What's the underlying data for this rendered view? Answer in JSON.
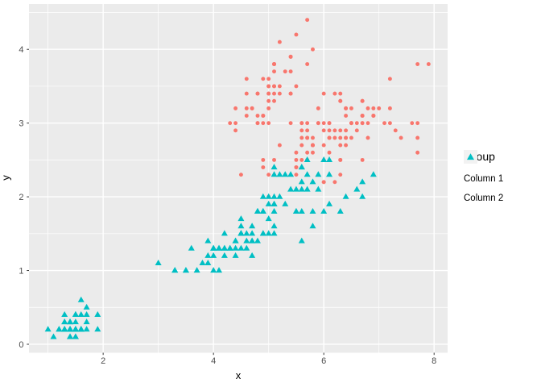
{
  "chart_data": {
    "type": "scatter",
    "title": "",
    "xlabel": "x",
    "ylabel": "y",
    "legend_title": "Group",
    "legend_position": "right",
    "grid": true,
    "panel_background": "#EBEBEB",
    "grid_color": "#FFFFFF",
    "tick_mark_color": "#333333",
    "tick_label_color": "#4D4D4D",
    "axis_title_color": "#000000",
    "legend_key_background": "#F2F2F2",
    "xlim": [
      0.655,
      8.245
    ],
    "ylim": [
      -0.115,
      4.615
    ],
    "x_ticks": [
      2,
      4,
      6,
      8
    ],
    "y_ticks": [
      0,
      1,
      2,
      3,
      4
    ],
    "x_minor_ticks": [
      1,
      3,
      5,
      7
    ],
    "y_minor_ticks": [
      0.5,
      1.5,
      2.5,
      3.5,
      4.5
    ],
    "series": [
      {
        "name": "Column 1",
        "shape": "circle",
        "color": "#F8766D",
        "points": [
          [
            5.1,
            3.5
          ],
          [
            4.9,
            3.0
          ],
          [
            4.7,
            3.2
          ],
          [
            4.6,
            3.1
          ],
          [
            5.0,
            3.6
          ],
          [
            5.4,
            3.9
          ],
          [
            4.6,
            3.4
          ],
          [
            5.0,
            3.4
          ],
          [
            4.4,
            2.9
          ],
          [
            4.9,
            3.1
          ],
          [
            5.4,
            3.7
          ],
          [
            4.8,
            3.4
          ],
          [
            4.8,
            3.0
          ],
          [
            4.3,
            3.0
          ],
          [
            5.8,
            4.0
          ],
          [
            5.7,
            4.4
          ],
          [
            5.4,
            3.9
          ],
          [
            5.1,
            3.5
          ],
          [
            5.7,
            3.8
          ],
          [
            5.1,
            3.8
          ],
          [
            5.4,
            3.4
          ],
          [
            5.1,
            3.7
          ],
          [
            4.6,
            3.6
          ],
          [
            5.1,
            3.3
          ],
          [
            4.8,
            3.4
          ],
          [
            5.0,
            3.0
          ],
          [
            5.0,
            3.4
          ],
          [
            5.2,
            3.5
          ],
          [
            5.2,
            3.4
          ],
          [
            4.7,
            3.2
          ],
          [
            4.8,
            3.1
          ],
          [
            5.4,
            3.4
          ],
          [
            5.2,
            4.1
          ],
          [
            5.5,
            4.2
          ],
          [
            4.9,
            3.1
          ],
          [
            5.0,
            3.2
          ],
          [
            5.5,
            3.5
          ],
          [
            4.9,
            3.6
          ],
          [
            4.4,
            3.0
          ],
          [
            5.1,
            3.4
          ],
          [
            5.0,
            3.5
          ],
          [
            4.5,
            2.3
          ],
          [
            4.4,
            3.2
          ],
          [
            5.0,
            3.5
          ],
          [
            5.1,
            3.8
          ],
          [
            4.8,
            3.0
          ],
          [
            5.1,
            3.8
          ],
          [
            4.6,
            3.2
          ],
          [
            5.3,
            3.7
          ],
          [
            5.0,
            3.3
          ],
          [
            7.0,
            3.2
          ],
          [
            6.4,
            3.2
          ],
          [
            6.9,
            3.1
          ],
          [
            5.5,
            2.3
          ],
          [
            6.5,
            2.8
          ],
          [
            5.7,
            2.8
          ],
          [
            6.3,
            3.3
          ],
          [
            4.9,
            2.4
          ],
          [
            6.6,
            2.9
          ],
          [
            5.2,
            2.7
          ],
          [
            5.0,
            2.0
          ],
          [
            5.9,
            3.0
          ],
          [
            6.0,
            2.2
          ],
          [
            6.1,
            2.9
          ],
          [
            5.6,
            2.9
          ],
          [
            6.7,
            3.1
          ],
          [
            5.6,
            3.0
          ],
          [
            5.8,
            2.7
          ],
          [
            6.2,
            2.2
          ],
          [
            5.6,
            2.5
          ],
          [
            5.9,
            3.2
          ],
          [
            6.1,
            2.8
          ],
          [
            6.3,
            2.5
          ],
          [
            6.1,
            2.8
          ],
          [
            6.4,
            2.9
          ],
          [
            6.6,
            3.0
          ],
          [
            6.8,
            2.8
          ],
          [
            6.7,
            3.0
          ],
          [
            6.0,
            2.9
          ],
          [
            5.7,
            2.6
          ],
          [
            5.5,
            2.4
          ],
          [
            5.5,
            2.4
          ],
          [
            5.8,
            2.7
          ],
          [
            6.0,
            2.7
          ],
          [
            5.4,
            3.0
          ],
          [
            6.0,
            3.4
          ],
          [
            6.7,
            3.1
          ],
          [
            6.3,
            2.3
          ],
          [
            5.6,
            3.0
          ],
          [
            5.5,
            2.5
          ],
          [
            5.5,
            2.6
          ],
          [
            6.1,
            3.0
          ],
          [
            5.8,
            2.6
          ],
          [
            5.0,
            2.3
          ],
          [
            5.6,
            2.7
          ],
          [
            5.7,
            3.0
          ],
          [
            5.7,
            2.9
          ],
          [
            6.2,
            2.9
          ],
          [
            5.1,
            2.5
          ],
          [
            5.7,
            2.8
          ],
          [
            6.3,
            3.3
          ],
          [
            5.8,
            2.7
          ],
          [
            7.1,
            3.0
          ],
          [
            6.3,
            2.9
          ],
          [
            6.5,
            3.0
          ],
          [
            7.6,
            3.0
          ],
          [
            4.9,
            2.5
          ],
          [
            7.3,
            2.9
          ],
          [
            6.7,
            2.5
          ],
          [
            7.2,
            3.6
          ],
          [
            6.5,
            3.2
          ],
          [
            6.4,
            2.7
          ],
          [
            6.8,
            3.0
          ],
          [
            5.7,
            2.5
          ],
          [
            5.8,
            2.8
          ],
          [
            6.4,
            3.2
          ],
          [
            6.5,
            3.0
          ],
          [
            7.7,
            3.8
          ],
          [
            7.7,
            2.6
          ],
          [
            6.0,
            2.2
          ],
          [
            6.9,
            3.2
          ],
          [
            5.6,
            2.8
          ],
          [
            7.7,
            2.8
          ],
          [
            6.3,
            2.7
          ],
          [
            6.7,
            3.3
          ],
          [
            7.2,
            3.2
          ],
          [
            6.2,
            2.8
          ],
          [
            6.1,
            3.0
          ],
          [
            6.4,
            2.8
          ],
          [
            7.2,
            3.0
          ],
          [
            7.4,
            2.8
          ],
          [
            7.9,
            3.8
          ],
          [
            6.4,
            2.8
          ],
          [
            6.3,
            2.8
          ],
          [
            6.1,
            2.6
          ],
          [
            7.7,
            3.0
          ],
          [
            6.3,
            3.4
          ],
          [
            6.4,
            3.1
          ],
          [
            6.0,
            3.0
          ],
          [
            6.9,
            3.1
          ],
          [
            6.7,
            3.1
          ],
          [
            6.9,
            3.1
          ],
          [
            5.8,
            2.7
          ],
          [
            6.8,
            3.2
          ],
          [
            6.7,
            3.3
          ],
          [
            6.7,
            3.0
          ],
          [
            6.3,
            2.5
          ],
          [
            6.5,
            3.0
          ],
          [
            6.2,
            3.4
          ],
          [
            5.9,
            3.0
          ]
        ]
      },
      {
        "name": "Column 2",
        "shape": "triangle",
        "color": "#00BFC4",
        "points": [
          [
            1.4,
            0.2
          ],
          [
            1.4,
            0.2
          ],
          [
            1.3,
            0.2
          ],
          [
            1.5,
            0.2
          ],
          [
            1.4,
            0.2
          ],
          [
            1.7,
            0.4
          ],
          [
            1.4,
            0.3
          ],
          [
            1.5,
            0.2
          ],
          [
            1.4,
            0.2
          ],
          [
            1.5,
            0.1
          ],
          [
            1.5,
            0.2
          ],
          [
            1.6,
            0.2
          ],
          [
            1.4,
            0.1
          ],
          [
            1.1,
            0.1
          ],
          [
            1.2,
            0.2
          ],
          [
            1.5,
            0.4
          ],
          [
            1.3,
            0.4
          ],
          [
            1.4,
            0.3
          ],
          [
            1.7,
            0.3
          ],
          [
            1.5,
            0.3
          ],
          [
            1.7,
            0.2
          ],
          [
            1.5,
            0.4
          ],
          [
            1.0,
            0.2
          ],
          [
            1.7,
            0.5
          ],
          [
            1.9,
            0.2
          ],
          [
            1.6,
            0.2
          ],
          [
            1.6,
            0.4
          ],
          [
            1.5,
            0.2
          ],
          [
            1.4,
            0.2
          ],
          [
            1.6,
            0.2
          ],
          [
            1.6,
            0.2
          ],
          [
            1.5,
            0.4
          ],
          [
            1.5,
            0.1
          ],
          [
            1.4,
            0.2
          ],
          [
            1.5,
            0.2
          ],
          [
            1.2,
            0.2
          ],
          [
            1.3,
            0.2
          ],
          [
            1.4,
            0.1
          ],
          [
            1.3,
            0.2
          ],
          [
            1.5,
            0.2
          ],
          [
            1.3,
            0.3
          ],
          [
            1.3,
            0.3
          ],
          [
            1.3,
            0.2
          ],
          [
            1.6,
            0.6
          ],
          [
            1.9,
            0.4
          ],
          [
            1.4,
            0.3
          ],
          [
            1.6,
            0.2
          ],
          [
            1.4,
            0.2
          ],
          [
            1.5,
            0.2
          ],
          [
            1.4,
            0.2
          ],
          [
            4.7,
            1.4
          ],
          [
            4.5,
            1.5
          ],
          [
            4.9,
            1.5
          ],
          [
            4.0,
            1.3
          ],
          [
            4.6,
            1.5
          ],
          [
            4.5,
            1.3
          ],
          [
            4.7,
            1.6
          ],
          [
            3.3,
            1.0
          ],
          [
            4.6,
            1.3
          ],
          [
            3.9,
            1.4
          ],
          [
            3.5,
            1.0
          ],
          [
            4.2,
            1.5
          ],
          [
            4.0,
            1.0
          ],
          [
            4.7,
            1.4
          ],
          [
            3.6,
            1.3
          ],
          [
            4.4,
            1.4
          ],
          [
            4.5,
            1.5
          ],
          [
            4.1,
            1.0
          ],
          [
            4.5,
            1.5
          ],
          [
            3.9,
            1.1
          ],
          [
            4.8,
            1.8
          ],
          [
            4.0,
            1.3
          ],
          [
            4.9,
            1.5
          ],
          [
            4.7,
            1.2
          ],
          [
            4.3,
            1.3
          ],
          [
            4.4,
            1.4
          ],
          [
            4.8,
            1.4
          ],
          [
            5.0,
            1.7
          ],
          [
            4.5,
            1.5
          ],
          [
            3.5,
            1.0
          ],
          [
            3.8,
            1.1
          ],
          [
            3.7,
            1.0
          ],
          [
            3.9,
            1.2
          ],
          [
            5.1,
            1.6
          ],
          [
            4.5,
            1.5
          ],
          [
            4.5,
            1.6
          ],
          [
            4.7,
            1.5
          ],
          [
            4.4,
            1.3
          ],
          [
            4.1,
            1.3
          ],
          [
            4.0,
            1.3
          ],
          [
            4.4,
            1.2
          ],
          [
            4.6,
            1.4
          ],
          [
            4.0,
            1.2
          ],
          [
            3.3,
            1.0
          ],
          [
            4.2,
            1.3
          ],
          [
            4.2,
            1.2
          ],
          [
            4.2,
            1.3
          ],
          [
            4.3,
            1.3
          ],
          [
            3.0,
            1.1
          ],
          [
            4.1,
            1.3
          ],
          [
            6.0,
            2.5
          ],
          [
            5.1,
            1.9
          ],
          [
            5.9,
            2.1
          ],
          [
            5.6,
            1.8
          ],
          [
            5.8,
            2.2
          ],
          [
            6.6,
            2.1
          ],
          [
            4.5,
            1.7
          ],
          [
            6.3,
            1.8
          ],
          [
            5.8,
            1.8
          ],
          [
            6.1,
            2.5
          ],
          [
            5.1,
            2.0
          ],
          [
            5.3,
            1.9
          ],
          [
            5.5,
            2.1
          ],
          [
            5.0,
            2.0
          ],
          [
            5.1,
            2.4
          ],
          [
            5.3,
            2.3
          ],
          [
            5.5,
            1.8
          ],
          [
            6.7,
            2.2
          ],
          [
            6.9,
            2.3
          ],
          [
            5.0,
            1.5
          ],
          [
            5.7,
            2.3
          ],
          [
            4.9,
            2.0
          ],
          [
            6.7,
            2.0
          ],
          [
            4.9,
            1.8
          ],
          [
            5.7,
            2.1
          ],
          [
            6.0,
            1.8
          ],
          [
            4.8,
            1.8
          ],
          [
            4.9,
            1.8
          ],
          [
            5.6,
            2.1
          ],
          [
            5.8,
            1.6
          ],
          [
            6.1,
            1.9
          ],
          [
            6.4,
            2.0
          ],
          [
            5.6,
            2.2
          ],
          [
            5.1,
            1.5
          ],
          [
            5.6,
            1.4
          ],
          [
            6.1,
            2.3
          ],
          [
            5.6,
            2.4
          ],
          [
            5.5,
            1.8
          ],
          [
            4.8,
            1.8
          ],
          [
            5.4,
            2.1
          ],
          [
            5.6,
            2.4
          ],
          [
            5.1,
            2.3
          ],
          [
            5.1,
            1.9
          ],
          [
            5.9,
            2.3
          ],
          [
            5.7,
            2.5
          ],
          [
            5.2,
            2.3
          ],
          [
            5.0,
            1.9
          ],
          [
            5.2,
            2.0
          ],
          [
            5.4,
            2.3
          ],
          [
            5.1,
            1.8
          ]
        ]
      }
    ]
  }
}
